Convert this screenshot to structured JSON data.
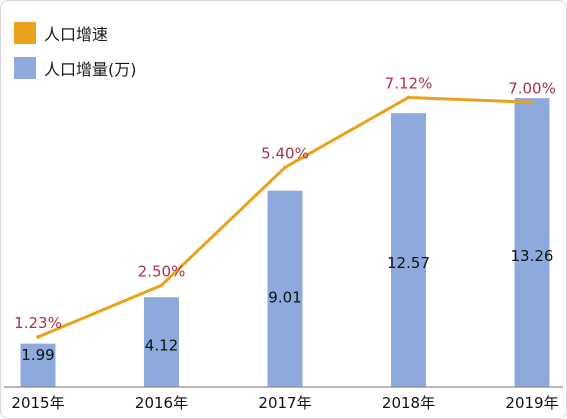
{
  "chart_data": {
    "type": "bar",
    "categories": [
      "2015年",
      "2016年",
      "2017年",
      "2018年",
      "2019年"
    ],
    "series": [
      {
        "name": "人口增量(万)",
        "kind": "bar",
        "color": "#8eaadc",
        "values": [
          1.99,
          4.12,
          9.01,
          12.57,
          13.26
        ],
        "labels": [
          "1.99",
          "4.12",
          "9.01",
          "12.57",
          "13.26"
        ]
      },
      {
        "name": "人口增速",
        "kind": "line",
        "color": "#e8a21c",
        "values": [
          1.23,
          2.5,
          5.4,
          7.12,
          7.0
        ],
        "labels": [
          "1.23%",
          "2.50%",
          "5.40%",
          "7.12%",
          "7.00%"
        ]
      }
    ],
    "legend_position": "top-left",
    "grid": false,
    "bar_ylim": [
      0,
      14
    ],
    "line_ylim": [
      0,
      7.5
    ],
    "line_label_color": "#a8334a",
    "axis_color": "#8c8c8c"
  }
}
